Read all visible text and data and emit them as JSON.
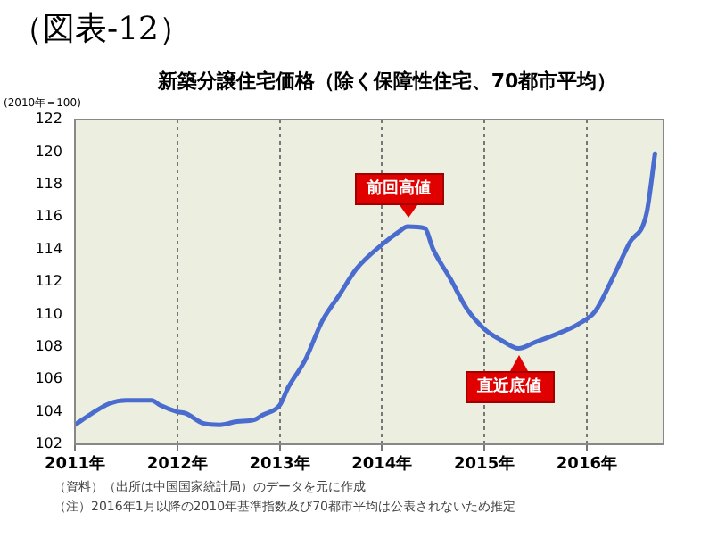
{
  "chart_data": {
    "type": "line",
    "title": "新築分譲住宅価格（除く保障性住宅、70都市平均）",
    "ylabel": "(2010年＝100)",
    "annotations": [
      "（図表-12）",
      "（資料）（出所は中国国家統計局）のデータを元に作成",
      "（注）2016年1月以降の2010年基準指数及び70都市平均は公表されないため推定",
      {
        "text": "前回高値",
        "x": "2014-04",
        "y": 115.4
      },
      {
        "text": "直近底値",
        "x": "2015-05",
        "y": 107.9
      }
    ],
    "series": [
      {
        "color": "#4a6ccf",
        "x": [
          "2011-01",
          "2011-03",
          "2011-05",
          "2011-07",
          "2011-10",
          "2011-11",
          "2012-01",
          "2012-02",
          "2012-04",
          "2012-06",
          "2012-08",
          "2012-10",
          "2012-11",
          "2013-01",
          "2013-02",
          "2013-04",
          "2013-06",
          "2013-08",
          "2013-10",
          "2014-01",
          "2014-03",
          "2014-04",
          "2014-06",
          "2014-07",
          "2014-09",
          "2014-11",
          "2015-01",
          "2015-03",
          "2015-05",
          "2015-07",
          "2015-10",
          "2015-12",
          "2016-02",
          "2016-04",
          "2016-06",
          "2016-08",
          "2016-09"
        ],
        "values": [
          103.2,
          103.9,
          104.5,
          104.7,
          104.7,
          104.4,
          104.0,
          103.9,
          103.3,
          103.2,
          103.4,
          103.5,
          103.8,
          104.4,
          105.5,
          107.2,
          109.6,
          111.2,
          112.8,
          114.3,
          115.1,
          115.4,
          115.3,
          114.0,
          112.2,
          110.3,
          109.1,
          108.4,
          107.9,
          108.3,
          108.9,
          109.4,
          110.2,
          112.2,
          114.4,
          116.2,
          119.9
        ]
      }
    ],
    "xlim": [
      "2011-01",
      "2016-10"
    ],
    "xticks": [
      {
        "value": "2011-01",
        "label": "2011年"
      },
      {
        "value": "2012-01",
        "label": "2012年"
      },
      {
        "value": "2013-01",
        "label": "2013年"
      },
      {
        "value": "2014-01",
        "label": "2014年"
      },
      {
        "value": "2015-01",
        "label": "2015年"
      },
      {
        "value": "2016-01",
        "label": "2016年"
      }
    ],
    "ylim": [
      102,
      122
    ],
    "yticks": [
      102,
      104,
      106,
      108,
      110,
      112,
      114,
      116,
      118,
      120,
      122
    ],
    "grid": "x",
    "legend": false,
    "marker": "none",
    "line_style": "solid"
  }
}
